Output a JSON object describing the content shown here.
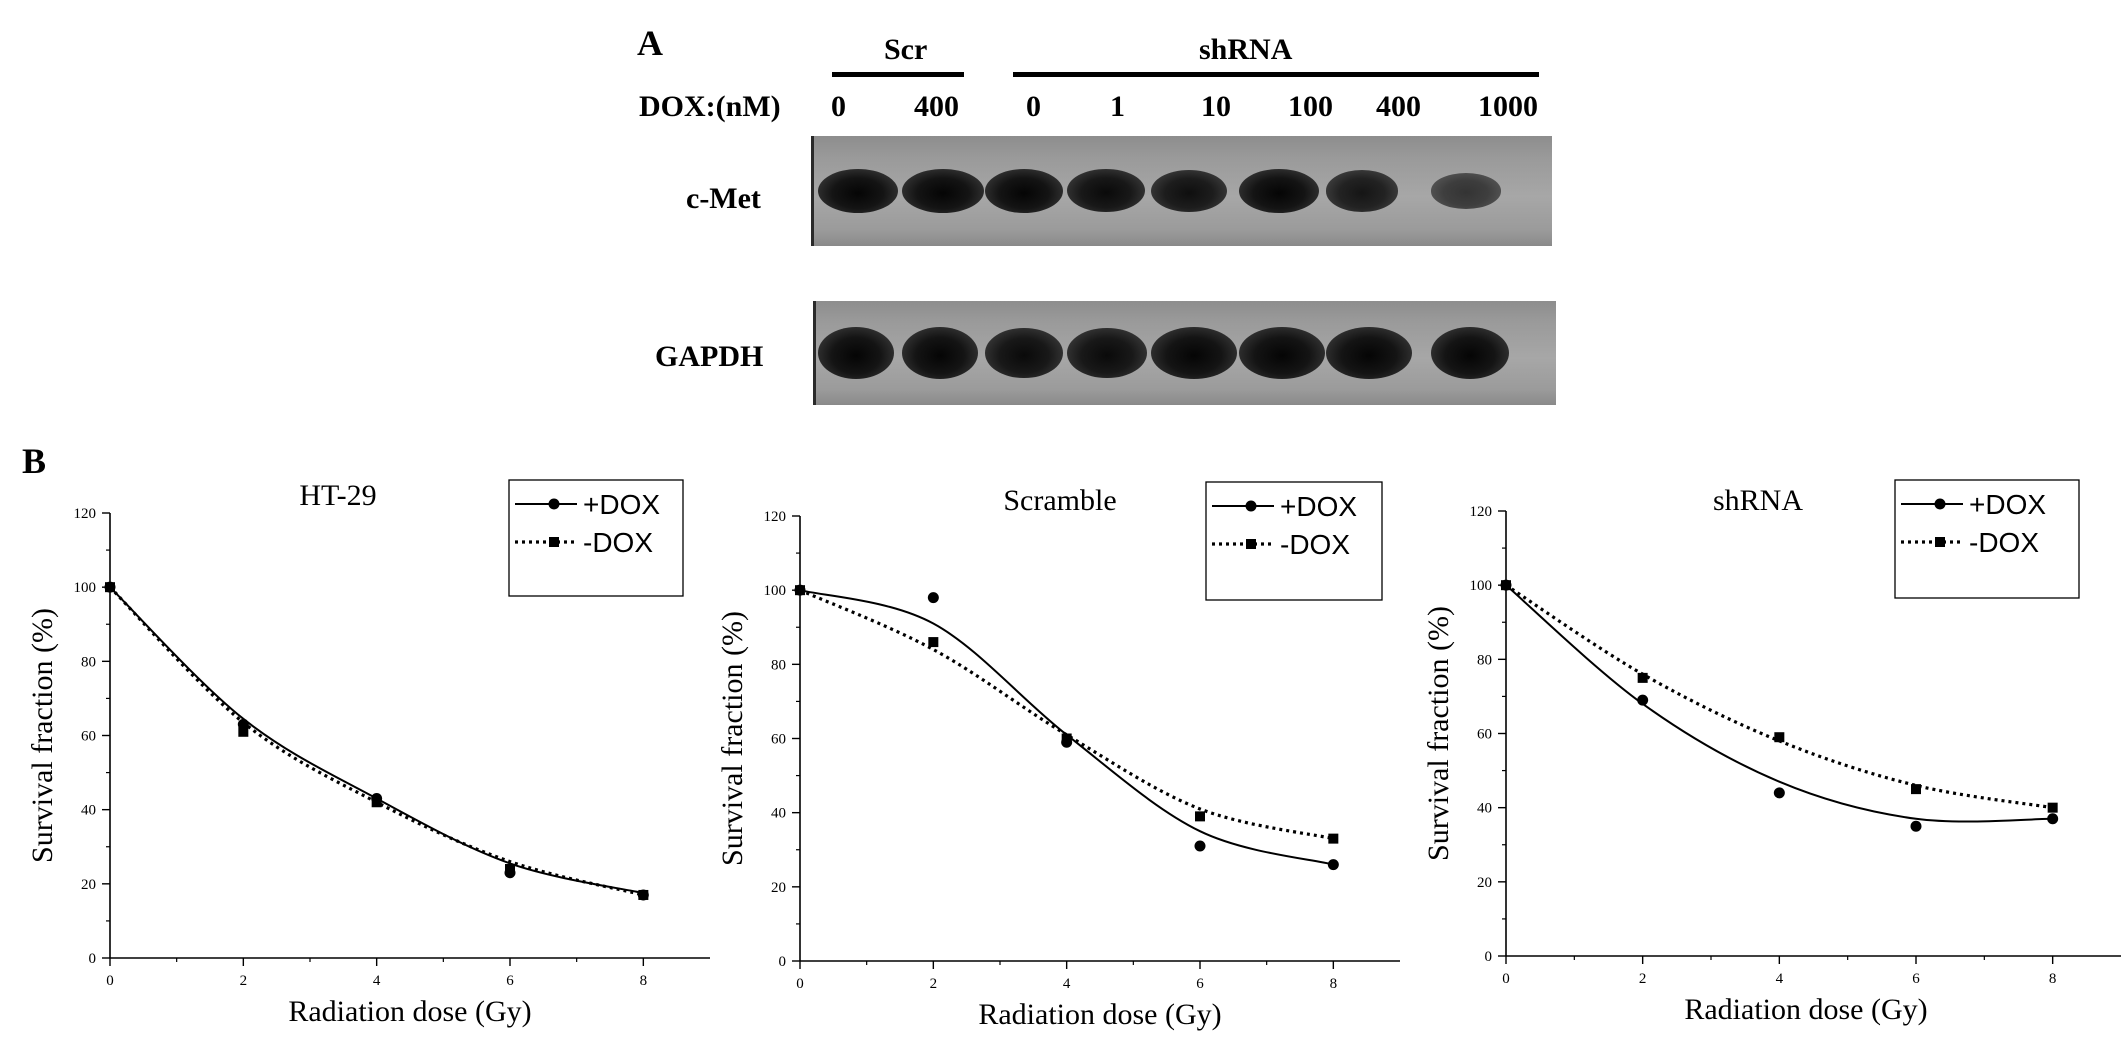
{
  "panel_a": {
    "letter": "A",
    "group_scr": "Scr",
    "group_shrna": "shRNA",
    "dox_label": "DOX:(nM)",
    "lane_labels": [
      "0",
      "400",
      "0",
      "1",
      "10",
      "100",
      "400",
      "1000"
    ],
    "blot_rows": [
      {
        "label": "c-Met",
        "band_intensity": [
          1.0,
          1.0,
          1.0,
          0.95,
          0.9,
          1.0,
          0.85,
          0.55
        ]
      },
      {
        "label": "GAPDH",
        "band_intensity": [
          1.0,
          1.0,
          0.95,
          0.95,
          1.0,
          1.0,
          1.0,
          1.0
        ]
      }
    ]
  },
  "panel_b": {
    "letter": "B"
  },
  "chart_data": [
    {
      "type": "scatter",
      "title": "HT-29",
      "xlabel": "Radiation dose (Gy)",
      "ylabel": "Survival fraction (%)",
      "xlim": [
        0,
        9
      ],
      "ylim": [
        0,
        120
      ],
      "xticks": [
        "0",
        "2",
        "4",
        "6",
        "8"
      ],
      "yticks": [
        "0",
        "20",
        "40",
        "60",
        "80",
        "100",
        "120"
      ],
      "legend_position": "top-right",
      "series": [
        {
          "name": "+DOX",
          "marker": "circle",
          "line": "solid",
          "x": [
            0,
            2,
            4,
            6,
            8
          ],
          "y": [
            100,
            63,
            43,
            23,
            17
          ],
          "fit_y": [
            100,
            64.5,
            43,
            25.5,
            17.5
          ]
        },
        {
          "name": "-DOX",
          "marker": "square",
          "line": "dotted",
          "x": [
            0,
            2,
            4,
            6,
            8
          ],
          "y": [
            100,
            61,
            42,
            24,
            17
          ],
          "fit_y": [
            100,
            63.5,
            42,
            26,
            17
          ]
        }
      ]
    },
    {
      "type": "scatter",
      "title": "Scramble",
      "xlabel": "Radiation dose (Gy)",
      "ylabel": "Survival fraction (%)",
      "xlim": [
        0,
        9
      ],
      "ylim": [
        0,
        120
      ],
      "xticks": [
        "0",
        "2",
        "4",
        "6",
        "8"
      ],
      "yticks": [
        "0",
        "20",
        "40",
        "60",
        "80",
        "100",
        "120"
      ],
      "legend_position": "top-right",
      "series": [
        {
          "name": "+DOX",
          "marker": "circle",
          "line": "solid",
          "x": [
            0,
            2,
            4,
            6,
            8
          ],
          "y": [
            100,
            98,
            59,
            31,
            26
          ],
          "fit_y": [
            100,
            91,
            61,
            35,
            26
          ]
        },
        {
          "name": "-DOX",
          "marker": "square",
          "line": "dotted",
          "x": [
            0,
            2,
            4,
            6,
            8
          ],
          "y": [
            100,
            86,
            60,
            39,
            33
          ],
          "fit_y": [
            100,
            84,
            61,
            41,
            33
          ]
        }
      ]
    },
    {
      "type": "scatter",
      "title": "shRNA",
      "xlabel": "Radiation dose (Gy)",
      "ylabel": "Survival fraction (%)",
      "xlim": [
        0,
        9
      ],
      "ylim": [
        0,
        120
      ],
      "xticks": [
        "0",
        "2",
        "4",
        "6",
        "8"
      ],
      "yticks": [
        "0",
        "20",
        "40",
        "60",
        "80",
        "100",
        "120"
      ],
      "legend_position": "top-right",
      "series": [
        {
          "name": "+DOX",
          "marker": "circle",
          "line": "solid",
          "x": [
            0,
            2,
            4,
            6,
            8
          ],
          "y": [
            100,
            69,
            44,
            35,
            37
          ],
          "fit_y": [
            100,
            68,
            47,
            37,
            37
          ]
        },
        {
          "name": "-DOX",
          "marker": "square",
          "line": "dotted",
          "x": [
            0,
            2,
            4,
            6,
            8
          ],
          "y": [
            100,
            75,
            59,
            45,
            40
          ],
          "fit_y": [
            100,
            76,
            58,
            46,
            40
          ]
        }
      ]
    }
  ]
}
